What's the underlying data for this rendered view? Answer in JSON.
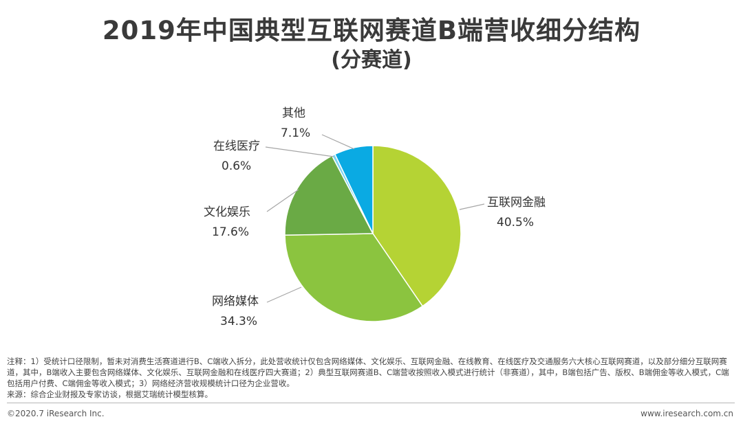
{
  "header": {
    "title": "2019年中国典型互联网赛道B端营收细分结构",
    "subtitle": "(分赛道)"
  },
  "chart_data": {
    "type": "pie",
    "title": "2019年中国典型互联网赛道B端营收细分结构",
    "subtitle": "(分赛道)",
    "slices": [
      {
        "name": "互联网金融",
        "value": 40.5,
        "label": "40.5%",
        "color": "#b5d334"
      },
      {
        "name": "网络媒体",
        "value": 34.3,
        "label": "34.3%",
        "color": "#8bc43f"
      },
      {
        "name": "文化娱乐",
        "value": 17.6,
        "label": "17.6%",
        "color": "#6aaa45"
      },
      {
        "name": "在线医疗",
        "value": 0.6,
        "label": "0.6%",
        "color": "#7dd3f0"
      },
      {
        "name": "其他",
        "value": 7.1,
        "label": "7.1%",
        "color": "#0aaae3"
      }
    ]
  },
  "notes": {
    "note": "注释：1）受统计口径限制，暂未对消费生活赛道进行B、C端收入拆分，此处营收统计仅包含网络媒体、文化娱乐、互联网金融、在线教育、在线医疗及交通服务六大核心互联网赛道，以及部分细分互联网赛道，其中，B端收入主要包含网络媒体、文化娱乐、互联网金融和在线医疗四大赛道；2）典型互联网赛道B、C端营收按照收入模式进行统计（非赛道），其中，B端包括广告、版权、B端佣金等收入模式，C端包括用户付费、C端佣金等收入模式；3）网络经济营收规模统计口径为企业营收。",
    "source": "来源：综合企业财报及专家访谈，根据艾瑞统计模型核算。"
  },
  "footer": {
    "copyright": "©2020.7 iResearch Inc.",
    "website": "www.iresearch.com.cn"
  }
}
